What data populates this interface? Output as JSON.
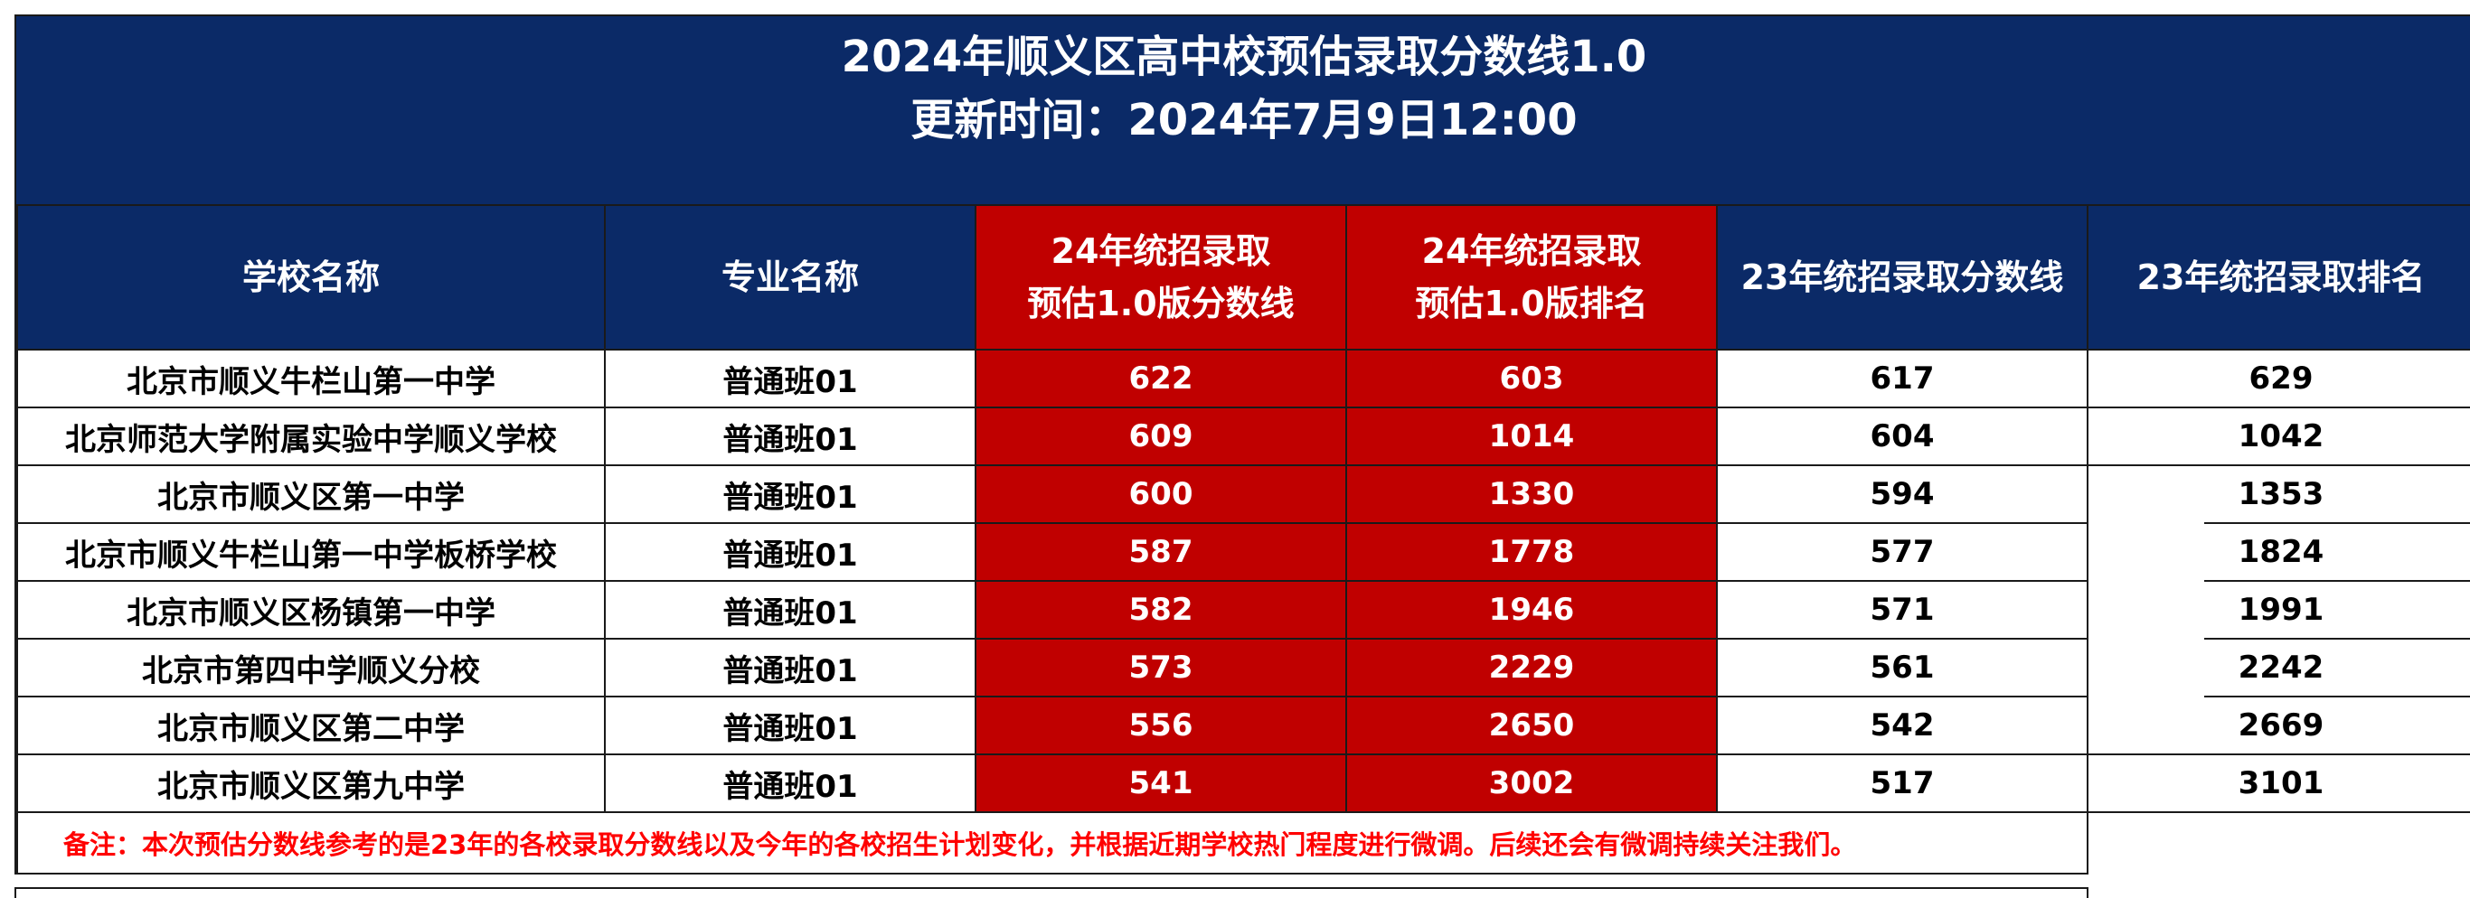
{
  "title": {
    "line1": "2024年顺义区高中校预估录取分数线1.0",
    "line2": "更新时间：2024年7月9日12:00"
  },
  "columns": {
    "school": "学校名称",
    "major": "专业名称",
    "est_score_1": "24年统招录取",
    "est_score_2": "预估1.0版分数线",
    "est_rank_1": "24年统招录取",
    "est_rank_2": "预估1.0版排名",
    "score_23": "23年统招录取分数线",
    "rank_23": "23年统招录取排名"
  },
  "rows": [
    {
      "school": "北京市顺义牛栏山第一中学",
      "major": "普通班01",
      "est_score": "622",
      "est_rank": "603",
      "score_23": "617",
      "rank_23": "629"
    },
    {
      "school": "北京师范大学附属实验中学顺义学校",
      "major": "普通班01",
      "est_score": "609",
      "est_rank": "1014",
      "score_23": "604",
      "rank_23": "1042"
    },
    {
      "school": "北京市顺义区第一中学",
      "major": "普通班01",
      "est_score": "600",
      "est_rank": "1330",
      "score_23": "594",
      "rank_23": "1353"
    },
    {
      "school": "北京市顺义牛栏山第一中学板桥学校",
      "major": "普通班01",
      "est_score": "587",
      "est_rank": "1778",
      "score_23": "577",
      "rank_23": "1824"
    },
    {
      "school": "北京市顺义区杨镇第一中学",
      "major": "普通班01",
      "est_score": "582",
      "est_rank": "1946",
      "score_23": "571",
      "rank_23": "1991"
    },
    {
      "school": "北京市第四中学顺义分校",
      "major": "普通班01",
      "est_score": "573",
      "est_rank": "2229",
      "score_23": "561",
      "rank_23": "2242"
    },
    {
      "school": "北京市顺义区第二中学",
      "major": "普通班01",
      "est_score": "556",
      "est_rank": "2650",
      "score_23": "542",
      "rank_23": "2669"
    },
    {
      "school": "北京市顺义区第九中学",
      "major": "普通班01",
      "est_score": "541",
      "est_rank": "3002",
      "score_23": "517",
      "rank_23": "3101"
    }
  ],
  "note": "备注：本次预估分数线参考的是23年的各校录取分数线以及今年的各校招生计划变化，并根据近期学校热门程度进行微调。后续还会有微调持续关注我们。",
  "colors": {
    "header_navy": "#0b2a67",
    "highlight_red": "#c00000",
    "note_red": "#ff0000"
  }
}
